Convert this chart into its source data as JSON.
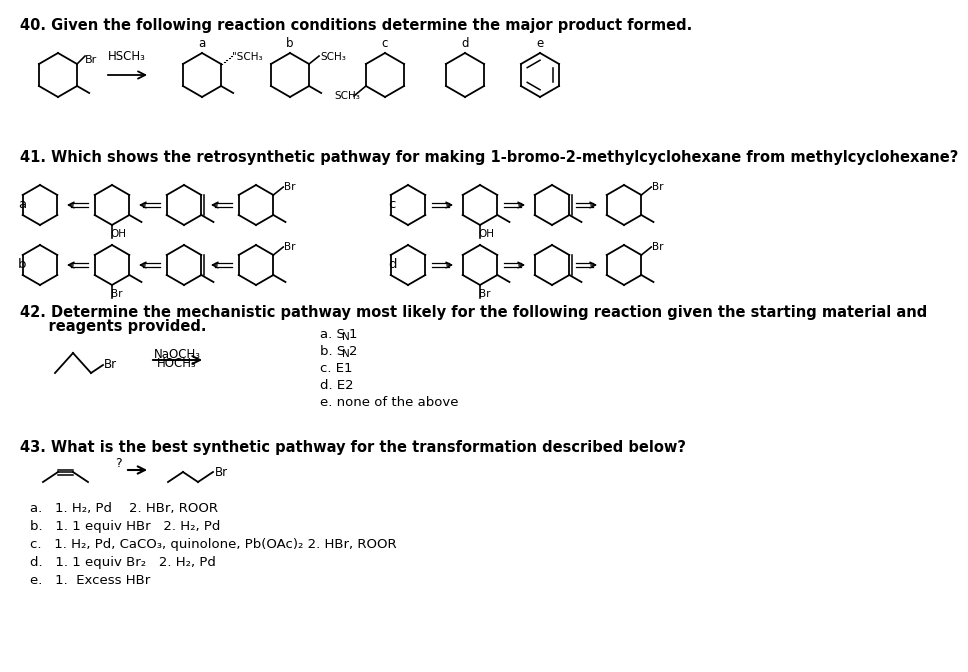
{
  "background_color": "#ffffff",
  "text_color": "#000000",
  "q40_text": "40. Given the following reaction conditions determine the major product formed.",
  "q41_text": "41. Which shows the retrosynthetic pathway for making 1-bromo-2-methylcyclohexane from methylcyclohexane?",
  "q42_line1": "42. Determine the mechanistic pathway most likely for the following reaction given the starting material and",
  "q42_line2": "    reagents provided.",
  "q43_text": "43. What is the best synthetic pathway for the transformation described below?",
  "q42_choices": [
    [
      "a. S",
      "N",
      "1"
    ],
    [
      "b. S",
      "N",
      "2"
    ],
    [
      "c. E1",
      "",
      ""
    ],
    [
      "d. E2",
      "",
      ""
    ],
    [
      "e. none of the above",
      "",
      ""
    ]
  ],
  "q43_choices": [
    "a.   1. H₂, Pd    2. HBr, ROOR",
    "b.   1. 1 equiv HBr   2. H₂, Pd",
    "c.   1. H₂, Pd, CaCO₃, quinolone, Pb(OAc)₂ 2. HBr, ROOR",
    "d.   1. 1 equiv Br₂   2. H₂, Pd",
    "e.   1.  Excess HBr"
  ]
}
